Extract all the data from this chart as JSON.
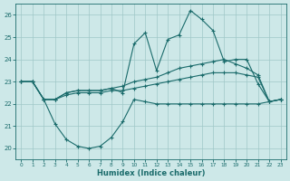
{
  "xlabel": "Humidex (Indice chaleur)",
  "bg_color": "#cde8e8",
  "grid_color": "#a0c8c8",
  "line_color": "#1a6b6b",
  "xlim": [
    -0.5,
    23.5
  ],
  "ylim": [
    19.5,
    26.5
  ],
  "yticks": [
    20,
    21,
    22,
    23,
    24,
    25,
    26
  ],
  "xticks": [
    0,
    1,
    2,
    3,
    4,
    5,
    6,
    7,
    8,
    9,
    10,
    11,
    12,
    13,
    14,
    15,
    16,
    17,
    18,
    19,
    20,
    21,
    22,
    23
  ],
  "line1_x": [
    0,
    1,
    2,
    3,
    4,
    5,
    6,
    7,
    8,
    9,
    10,
    11,
    12,
    13,
    14,
    15,
    16,
    17,
    18,
    19,
    20,
    21,
    22,
    23
  ],
  "line1_y": [
    23.0,
    23.0,
    22.2,
    21.1,
    20.4,
    20.1,
    20.0,
    20.1,
    20.5,
    21.2,
    22.2,
    22.1,
    22.0,
    22.0,
    22.0,
    22.0,
    22.0,
    22.0,
    22.0,
    22.0,
    22.0,
    22.0,
    22.1,
    22.2
  ],
  "line2_x": [
    0,
    1,
    2,
    3,
    4,
    5,
    6,
    7,
    8,
    9,
    10,
    11,
    12,
    13,
    14,
    15,
    16,
    17,
    18,
    19,
    20,
    21,
    22,
    23
  ],
  "line2_y": [
    23.0,
    23.0,
    22.2,
    22.2,
    22.4,
    22.5,
    22.5,
    22.5,
    22.6,
    22.6,
    22.7,
    22.8,
    22.9,
    23.0,
    23.1,
    23.2,
    23.3,
    23.4,
    23.4,
    23.4,
    23.3,
    23.2,
    22.1,
    22.2
  ],
  "line3_x": [
    0,
    1,
    2,
    3,
    4,
    5,
    6,
    7,
    8,
    9,
    10,
    11,
    12,
    13,
    14,
    15,
    16,
    17,
    18,
    19,
    20,
    21,
    22,
    23
  ],
  "line3_y": [
    23.0,
    23.0,
    22.2,
    22.2,
    22.5,
    22.6,
    22.6,
    22.6,
    22.7,
    22.8,
    23.0,
    23.1,
    23.2,
    23.4,
    23.6,
    23.7,
    23.8,
    23.9,
    24.0,
    23.8,
    23.6,
    23.3,
    22.1,
    22.2
  ],
  "line4_x": [
    0,
    1,
    2,
    3,
    4,
    5,
    6,
    7,
    8,
    9,
    10,
    11,
    12,
    13,
    14,
    15,
    16,
    17,
    18,
    19,
    20,
    21,
    22,
    23
  ],
  "line4_y": [
    23.0,
    23.0,
    22.2,
    22.2,
    22.5,
    22.6,
    22.6,
    22.6,
    22.7,
    22.5,
    24.7,
    25.2,
    23.5,
    24.9,
    25.1,
    26.2,
    25.8,
    25.3,
    23.9,
    24.0,
    24.0,
    22.9,
    22.1,
    22.2
  ]
}
